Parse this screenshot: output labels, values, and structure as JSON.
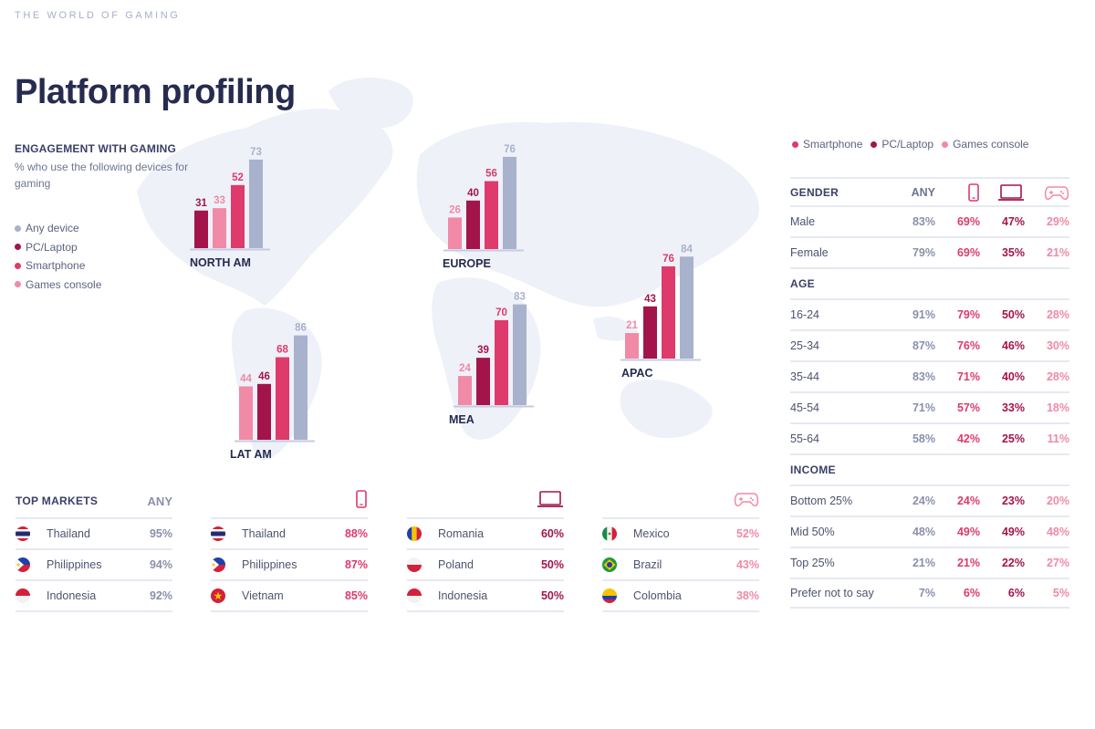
{
  "header": {
    "kicker": "THE WORLD OF GAMING",
    "title": "Platform profiling"
  },
  "intro": {
    "heading": "ENGAGEMENT WITH GAMING",
    "subtitle": "% who use the following devices for gaming"
  },
  "legend_left": [
    {
      "label": "Any device",
      "color": "#a9b2cc"
    },
    {
      "label": "PC/Laptop",
      "color": "#a3154a"
    },
    {
      "label": "Smartphone",
      "color": "#de3a6c"
    },
    {
      "label": "Games console",
      "color": "#f08aa6"
    }
  ],
  "legend_top": [
    {
      "label": "Smartphone",
      "color": "#de3a6c"
    },
    {
      "label": "PC/Laptop",
      "color": "#a3154a"
    },
    {
      "label": "Games console",
      "color": "#f08aa6"
    }
  ],
  "chart_data": {
    "type": "bar",
    "title": "ENGAGEMENT WITH GAMING",
    "subtitle": "% who use the following devices for gaming",
    "ylabel": "%",
    "ylim": [
      0,
      100
    ],
    "grid": false,
    "series_names": [
      "Games console",
      "PC/Laptop",
      "Smartphone",
      "Any device"
    ],
    "series_colors": [
      "#f08aa6",
      "#a3154a",
      "#de3a6c",
      "#a9b2cc"
    ],
    "categories": [
      "NORTH AM",
      "EUROPE",
      "APAC",
      "LAT AM",
      "MEA"
    ],
    "series": [
      {
        "name": "Games console",
        "values": [
          33,
          26,
          21,
          44,
          24
        ]
      },
      {
        "name": "PC/Laptop",
        "values": [
          31,
          40,
          43,
          46,
          39
        ]
      },
      {
        "name": "Smartphone",
        "values": [
          52,
          56,
          76,
          68,
          70
        ]
      },
      {
        "name": "Any device",
        "values": [
          73,
          76,
          84,
          86,
          83
        ]
      }
    ],
    "regions": [
      {
        "name": "NORTH AM",
        "values": [
          31,
          33,
          52,
          73
        ],
        "order": [
          "PC/Laptop",
          "Games console",
          "Smartphone",
          "Any device"
        ]
      },
      {
        "name": "EUROPE",
        "values": [
          26,
          40,
          56,
          76
        ],
        "order": [
          "Games console",
          "PC/Laptop",
          "Smartphone",
          "Any device"
        ]
      },
      {
        "name": "APAC",
        "values": [
          21,
          43,
          76,
          84
        ],
        "order": [
          "Games console",
          "PC/Laptop",
          "Smartphone",
          "Any device"
        ]
      },
      {
        "name": "LAT AM",
        "values": [
          44,
          46,
          68,
          86
        ],
        "order": [
          "Games console",
          "PC/Laptop",
          "Smartphone",
          "Any device"
        ]
      },
      {
        "name": "MEA",
        "values": [
          24,
          39,
          70,
          83
        ],
        "order": [
          "Games console",
          "PC/Laptop",
          "Smartphone",
          "Any device"
        ]
      }
    ]
  },
  "demographics": {
    "columns": [
      "ANY",
      "smartphone-icon",
      "laptop-icon",
      "gamepad-icon"
    ],
    "sections": [
      {
        "title": "GENDER",
        "rows": [
          {
            "label": "Male",
            "any": "83%",
            "smartphone": "69%",
            "pc": "47%",
            "console": "29%"
          },
          {
            "label": "Female",
            "any": "79%",
            "smartphone": "69%",
            "pc": "35%",
            "console": "21%"
          }
        ]
      },
      {
        "title": "AGE",
        "rows": [
          {
            "label": "16-24",
            "any": "91%",
            "smartphone": "79%",
            "pc": "50%",
            "console": "28%"
          },
          {
            "label": "25-34",
            "any": "87%",
            "smartphone": "76%",
            "pc": "46%",
            "console": "30%"
          },
          {
            "label": "35-44",
            "any": "83%",
            "smartphone": "71%",
            "pc": "40%",
            "console": "28%"
          },
          {
            "label": "45-54",
            "any": "71%",
            "smartphone": "57%",
            "pc": "33%",
            "console": "18%"
          },
          {
            "label": "55-64",
            "any": "58%",
            "smartphone": "42%",
            "pc": "25%",
            "console": "11%"
          }
        ]
      },
      {
        "title": "INCOME",
        "rows": [
          {
            "label": "Bottom 25%",
            "any": "24%",
            "smartphone": "24%",
            "pc": "23%",
            "console": "20%"
          },
          {
            "label": "Mid 50%",
            "any": "48%",
            "smartphone": "49%",
            "pc": "49%",
            "console": "48%"
          },
          {
            "label": "Top 25%",
            "any": "21%",
            "smartphone": "21%",
            "pc": "22%",
            "console": "27%"
          },
          {
            "label": "Prefer not to say",
            "any": "7%",
            "smartphone": "6%",
            "pc": "6%",
            "console": "5%"
          }
        ]
      }
    ]
  },
  "top_markets": {
    "title": "TOP MARKETS",
    "any_label": "ANY",
    "tables": [
      {
        "icon": "none",
        "color": "#8a90ab",
        "rows": [
          {
            "country": "Thailand",
            "flag": "thailand-flag",
            "value": "95%"
          },
          {
            "country": "Philippines",
            "flag": "philippines-flag",
            "value": "94%"
          },
          {
            "country": "Indonesia",
            "flag": "indonesia-flag",
            "value": "92%"
          }
        ]
      },
      {
        "icon": "smartphone-icon",
        "color": "#de3a6c",
        "rows": [
          {
            "country": "Thailand",
            "flag": "thailand-flag",
            "value": "88%"
          },
          {
            "country": "Philippines",
            "flag": "philippines-flag",
            "value": "87%"
          },
          {
            "country": "Vietnam",
            "flag": "vietnam-flag",
            "value": "85%"
          }
        ]
      },
      {
        "icon": "laptop-icon",
        "color": "#a3154a",
        "rows": [
          {
            "country": "Romania",
            "flag": "romania-flag",
            "value": "60%"
          },
          {
            "country": "Poland",
            "flag": "poland-flag",
            "value": "50%"
          },
          {
            "country": "Indonesia",
            "flag": "indonesia-flag",
            "value": "50%"
          }
        ]
      },
      {
        "icon": "gamepad-icon",
        "color": "#f08aa6",
        "rows": [
          {
            "country": "Mexico",
            "flag": "mexico-flag",
            "value": "52%"
          },
          {
            "country": "Brazil",
            "flag": "brazil-flag",
            "value": "43%"
          },
          {
            "country": "Colombia",
            "flag": "colombia-flag",
            "value": "38%"
          }
        ]
      }
    ]
  }
}
